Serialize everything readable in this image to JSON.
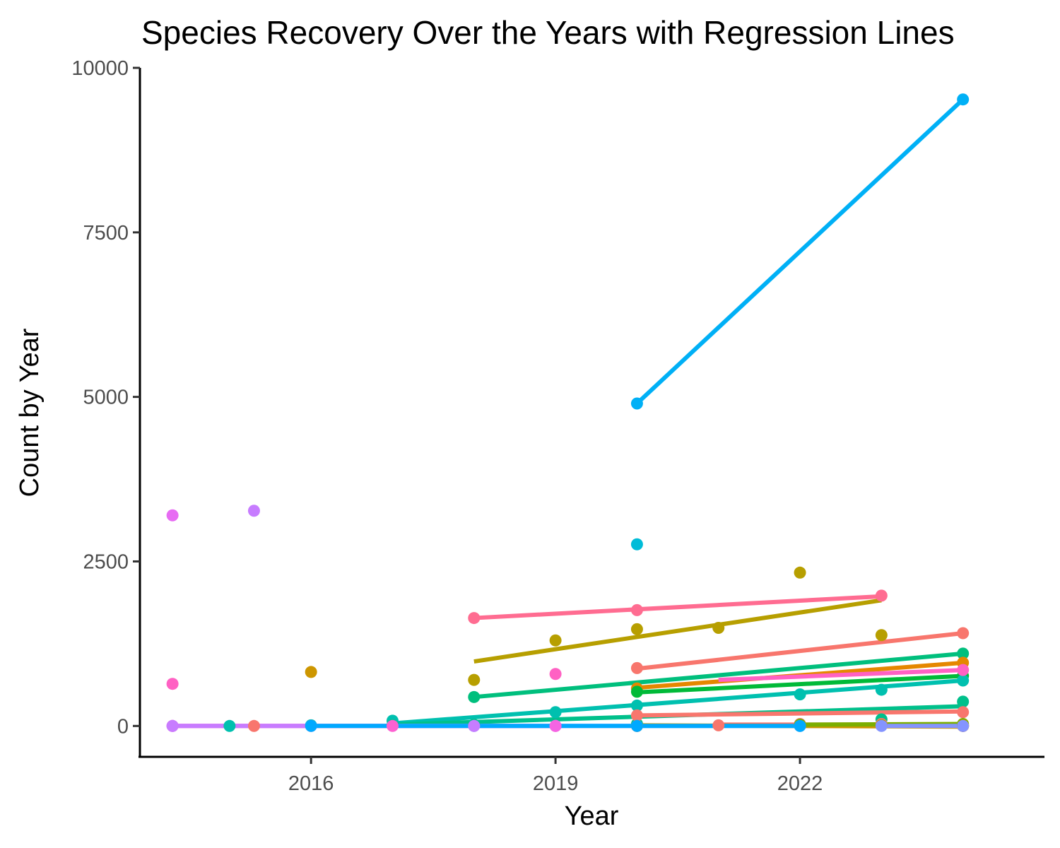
{
  "chart_data": {
    "type": "scatter",
    "title": "Species Recovery Over the Years with Regression Lines",
    "xlabel": "Year",
    "ylabel": "Count by Year",
    "xlim": [
      2013.9,
      2025.0
    ],
    "ylim": [
      -480,
      10000
    ],
    "x_ticks": [
      2016,
      2019,
      2022
    ],
    "y_ticks": [
      0,
      2500,
      5000,
      7500,
      10000
    ],
    "grid": false,
    "legend": "none",
    "series": [
      {
        "color": "#00B0F6",
        "points": [
          [
            2020,
            4900
          ],
          [
            2024,
            9520
          ]
        ],
        "fit": [
          [
            2020,
            4900
          ],
          [
            2024,
            9520
          ]
        ]
      },
      {
        "color": "#F8766D",
        "points": [
          [
            2020,
            880
          ],
          [
            2024,
            1410
          ]
        ],
        "fit": [
          [
            2020,
            870
          ],
          [
            2024,
            1410
          ]
        ]
      },
      {
        "color": "#FF6C91",
        "points": [
          [
            2018,
            1640
          ],
          [
            2020,
            1760
          ],
          [
            2023,
            1980
          ]
        ],
        "fit": [
          [
            2018,
            1640
          ],
          [
            2023,
            1970
          ]
        ]
      },
      {
        "color": "#B79F00",
        "points": [
          [
            2018,
            700
          ],
          [
            2019,
            1300
          ],
          [
            2020,
            1470
          ],
          [
            2021,
            1490
          ],
          [
            2022,
            2330
          ],
          [
            2023,
            1380
          ]
        ],
        "fit": [
          [
            2018,
            980
          ],
          [
            2023,
            1910
          ]
        ]
      },
      {
        "color": "#00BF7D",
        "points": [
          [
            2018,
            440
          ],
          [
            2024,
            1100
          ]
        ],
        "fit": [
          [
            2018,
            440
          ],
          [
            2024,
            1100
          ]
        ]
      },
      {
        "color": "#E58700",
        "points": [
          [
            2020,
            570
          ],
          [
            2024,
            960
          ]
        ],
        "fit": [
          [
            2020,
            580
          ],
          [
            2024,
            960
          ]
        ]
      },
      {
        "color": "#00BA38",
        "points": [
          [
            2020,
            520
          ],
          [
            2024,
            760
          ]
        ],
        "fit": [
          [
            2020,
            510
          ],
          [
            2024,
            760
          ]
        ]
      },
      {
        "color": "#00C0AF",
        "points": [
          [
            2015,
            0
          ],
          [
            2016,
            10
          ],
          [
            2017,
            80
          ],
          [
            2018,
            10
          ],
          [
            2019,
            210
          ],
          [
            2020,
            310
          ],
          [
            2022,
            480
          ],
          [
            2023,
            550
          ],
          [
            2024,
            690
          ]
        ],
        "fit": [
          [
            2017,
            40
          ],
          [
            2024,
            690
          ]
        ]
      },
      {
        "color": "#FF61C3",
        "points": [
          [
            2014.3,
            640
          ],
          [
            2019,
            790
          ],
          [
            2024,
            850
          ]
        ],
        "fit": [
          [
            2021,
            700
          ],
          [
            2024,
            850
          ]
        ]
      },
      {
        "color": "#00C08B",
        "points": [
          [
            2017,
            10
          ],
          [
            2018,
            20
          ],
          [
            2020,
            30
          ],
          [
            2023,
            100
          ],
          [
            2024,
            370
          ]
        ],
        "fit": [
          [
            2017,
            20
          ],
          [
            2024,
            300
          ]
        ]
      },
      {
        "color": "#E76BF3",
        "points": [
          [
            2014.3,
            3200
          ]
        ],
        "fit": []
      },
      {
        "color": "#C77CFF",
        "points": [
          [
            2015.3,
            3270
          ]
        ],
        "fit": []
      },
      {
        "color": "#CD9600",
        "points": [
          [
            2016,
            820
          ]
        ],
        "fit": []
      },
      {
        "color": "#00BCD8",
        "points": [
          [
            2020,
            2760
          ]
        ],
        "fit": []
      },
      {
        "color": "#FD61D1",
        "points": [
          [
            2014.3,
            0
          ],
          [
            2017,
            0
          ],
          [
            2019,
            0
          ],
          [
            2024,
            0
          ]
        ],
        "fit": [
          [
            2014.3,
            0
          ],
          [
            2019,
            0
          ]
        ]
      },
      {
        "color": "#F8766D",
        "points": [
          [
            2015.3,
            0
          ],
          [
            2020,
            160
          ],
          [
            2024,
            210
          ]
        ],
        "fit": [
          [
            2020,
            160
          ],
          [
            2024,
            220
          ]
        ]
      },
      {
        "color": "#F564E3",
        "points": [
          [
            2014.3,
            0
          ],
          [
            2016,
            0
          ],
          [
            2019,
            0
          ]
        ],
        "fit": [
          [
            2014.3,
            0
          ],
          [
            2019,
            0
          ]
        ]
      },
      {
        "color": "#619CFF",
        "points": [
          [
            2018,
            0
          ],
          [
            2020,
            0
          ],
          [
            2022,
            0
          ],
          [
            2024,
            0
          ]
        ],
        "fit": [
          [
            2020,
            0
          ],
          [
            2024,
            0
          ]
        ]
      },
      {
        "color": "#C77CFF",
        "points": [
          [
            2014.3,
            0
          ],
          [
            2018,
            0
          ],
          [
            2020,
            0
          ]
        ],
        "fit": [
          [
            2014.3,
            0
          ],
          [
            2020,
            0
          ]
        ]
      },
      {
        "color": "#F8766D",
        "points": [
          [
            2021,
            10
          ],
          [
            2022,
            30
          ],
          [
            2023,
            30
          ],
          [
            2024,
            0
          ]
        ],
        "fit": [
          [
            2021,
            20
          ],
          [
            2024,
            20
          ]
        ]
      },
      {
        "color": "#CD9600",
        "points": [
          [
            2020,
            0
          ],
          [
            2024,
            0
          ]
        ],
        "fit": [
          [
            2020,
            10
          ],
          [
            2024,
            -10
          ]
        ]
      },
      {
        "color": "#7CAE00",
        "points": [
          [
            2022,
            20
          ],
          [
            2024,
            30
          ]
        ],
        "fit": [
          [
            2022,
            20
          ],
          [
            2024,
            30
          ]
        ]
      },
      {
        "color": "#A3A500",
        "points": [
          [
            2023,
            10
          ],
          [
            2024,
            10
          ]
        ],
        "fit": []
      },
      {
        "color": "#00A9FF",
        "points": [
          [
            2016,
            0
          ],
          [
            2020,
            0
          ],
          [
            2022,
            0
          ]
        ],
        "fit": [
          [
            2016,
            0
          ],
          [
            2022,
            0
          ]
        ]
      },
      {
        "color": "#8494FF",
        "points": [
          [
            2023,
            0
          ],
          [
            2024,
            0
          ]
        ],
        "fit": [
          [
            2023,
            0
          ],
          [
            2024,
            0
          ]
        ]
      }
    ]
  }
}
